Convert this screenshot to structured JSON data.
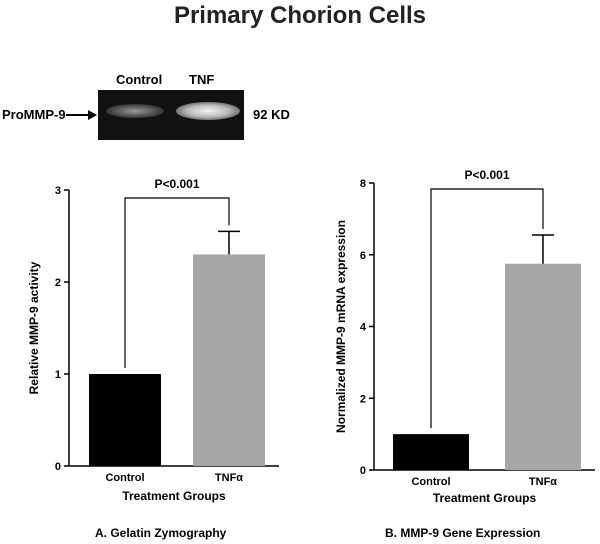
{
  "page_title": "Primary Chorion Cells",
  "gel": {
    "lane_labels": [
      "Control",
      "TNF"
    ],
    "left_label": "ProMMP-9",
    "right_label": "92 KD"
  },
  "chart_data": [
    {
      "type": "bar",
      "categories": [
        "Control",
        "TNFα"
      ],
      "values": [
        1.0,
        2.3
      ],
      "errors": [
        0,
        0.25
      ],
      "colors": [
        "#000000",
        "#a6a6a6"
      ],
      "ylabel": "Relative MMP-9 activity",
      "xlabel": "Treatment  Groups",
      "ylim": [
        0,
        3
      ],
      "yticks": [
        0,
        1,
        2,
        3
      ],
      "significance": "P<0.001",
      "caption": "A. Gelatin Zymography"
    },
    {
      "type": "bar",
      "categories": [
        "Control",
        "TNFα"
      ],
      "values": [
        1.0,
        5.75
      ],
      "errors": [
        0,
        0.8
      ],
      "colors": [
        "#000000",
        "#a6a6a6"
      ],
      "ylabel": "Normalized MMP-9 mRNA expression",
      "xlabel": "Treatment  Groups",
      "ylim": [
        0,
        8
      ],
      "yticks": [
        0,
        2,
        4,
        6,
        8
      ],
      "significance": "P<0.001",
      "caption": "B. MMP-9 Gene Expression"
    }
  ]
}
